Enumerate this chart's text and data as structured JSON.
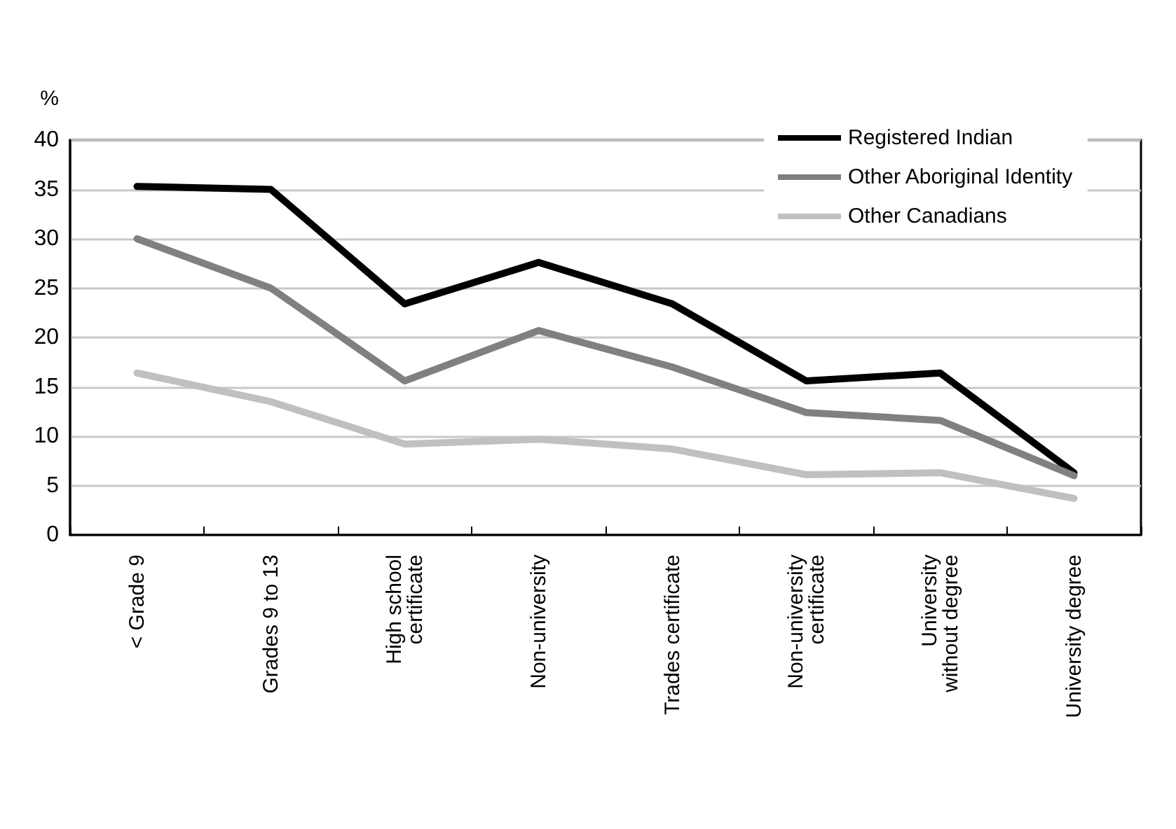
{
  "chart_data": {
    "type": "line",
    "ylabel": "%",
    "categories": [
      "< Grade 9",
      "Grades 9 to 13",
      "High school\ncertificate",
      "Non-university",
      "Trades certificate",
      "Non-university\ncertificate",
      "University\nwithout degree",
      "University degree"
    ],
    "series": [
      {
        "name": "Registered Indian",
        "color": "#000000",
        "values": [
          35.3,
          35.0,
          23.4,
          27.6,
          23.4,
          15.6,
          16.4,
          6.3
        ]
      },
      {
        "name": "Other Aboriginal Identity",
        "color": "#808080",
        "values": [
          30.0,
          25.0,
          15.6,
          20.7,
          17.0,
          12.4,
          11.6,
          6.0
        ]
      },
      {
        "name": "Other Canadians",
        "color": "#c0c0c0",
        "values": [
          16.4,
          13.5,
          9.2,
          9.7,
          8.7,
          6.1,
          6.3,
          3.7
        ]
      }
    ],
    "ylim": [
      0,
      40
    ],
    "yticks": [
      0,
      5,
      10,
      15,
      20,
      25,
      30,
      35,
      40
    ],
    "grid": "y",
    "legend": "top right",
    "marker": "none",
    "line_style": "solid"
  }
}
